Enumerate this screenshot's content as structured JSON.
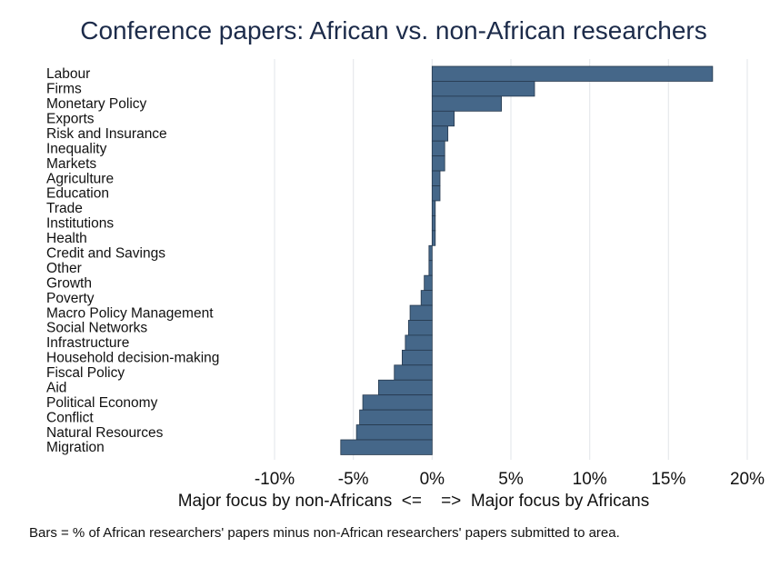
{
  "chart_data": {
    "type": "bar",
    "orientation": "horizontal",
    "title": "Conference papers: African vs. non-African researchers",
    "xlabel": "Major focus by non-Africans  <=    =>  Major focus by Africans",
    "note": "Bars = % of African researchers' papers minus non-African researchers' papers submitted to area.",
    "xlim": [
      -10,
      20
    ],
    "xticks": [
      -10,
      -5,
      0,
      5,
      10,
      15,
      20
    ],
    "xtick_labels": [
      "-10%",
      "-5%",
      "0%",
      "5%",
      "10%",
      "15%",
      "20%"
    ],
    "grid": true,
    "bar_color": "#456789",
    "categories": [
      "Labour",
      "Firms",
      "Monetary Policy",
      "Exports",
      "Risk and Insurance",
      "Inequality",
      "Markets",
      "Agriculture",
      "Education",
      "Trade",
      "Institutions",
      "Health",
      "Credit and Savings",
      "Other",
      "Growth",
      "Poverty",
      "Macro Policy Management",
      "Social Networks",
      "Infrastructure",
      "Household decision-making",
      "Fiscal Policy",
      "Aid",
      "Political Economy",
      "Conflict",
      "Natural Resources",
      "Migration"
    ],
    "values": [
      17.8,
      6.5,
      4.4,
      1.4,
      1.0,
      0.8,
      0.8,
      0.5,
      0.5,
      0.2,
      0.2,
      0.2,
      -0.2,
      -0.2,
      -0.5,
      -0.7,
      -1.4,
      -1.5,
      -1.7,
      -1.9,
      -2.4,
      -3.4,
      -4.4,
      -4.6,
      -4.8,
      -5.8
    ]
  }
}
